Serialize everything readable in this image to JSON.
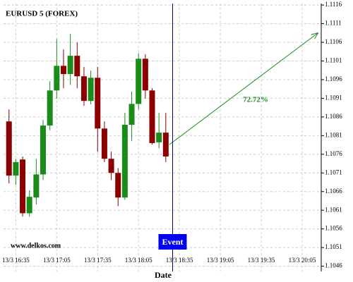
{
  "chart_data": {
    "type": "candlestick",
    "title": "EURUSD 5 (FOREX)",
    "watermark": "www.delkos.com",
    "x_label": "Date",
    "x": [
      "13/3 16:30",
      "13/3 16:35",
      "13/3 16:40",
      "13/3 16:45",
      "13/3 16:50",
      "13/3 16:55",
      "13/3 17:00",
      "13/3 17:05",
      "13/3 17:10",
      "13/3 17:15",
      "13/3 17:20",
      "13/3 17:25",
      "13/3 17:30",
      "13/3 17:35",
      "13/3 17:40",
      "13/3 17:45",
      "13/3 17:50",
      "13/3 17:55",
      "13/3 18:00",
      "13/3 18:05",
      "13/3 18:10",
      "13/3 18:15",
      "13/3 18:20",
      "13/3 18:25"
    ],
    "open": [
      1.10848,
      1.10703,
      1.10746,
      1.10602,
      1.10644,
      1.10706,
      1.10837,
      1.10931,
      1.10997,
      1.10975,
      1.11024,
      1.10969,
      1.10903,
      1.10965,
      1.10829,
      1.10748,
      1.1071,
      1.10644,
      1.10839,
      1.10895,
      1.11016,
      1.10931,
      1.10792,
      1.10818
    ],
    "high": [
      1.1088,
      1.10748,
      1.10754,
      1.10663,
      1.10748,
      1.10852,
      1.10956,
      1.11069,
      1.11041,
      1.11083,
      1.1106,
      1.10994,
      1.10984,
      1.10994,
      1.10848,
      1.10767,
      1.10723,
      1.10871,
      1.10928,
      1.11031,
      1.11028,
      1.10937,
      1.10871,
      1.10871
    ],
    "low": [
      1.10682,
      1.10678,
      1.10593,
      1.10593,
      1.10625,
      1.10691,
      1.10824,
      1.10909,
      1.10937,
      1.10946,
      1.10937,
      1.1089,
      1.10894,
      1.10767,
      1.10739,
      1.10691,
      1.10621,
      1.10638,
      1.10795,
      1.1088,
      1.10909,
      1.10786,
      1.10776,
      1.10739
    ],
    "close": [
      1.10703,
      1.10739,
      1.10602,
      1.10646,
      1.10706,
      1.10837,
      1.10931,
      1.10997,
      1.10975,
      1.11024,
      1.10969,
      1.10903,
      1.10965,
      1.10829,
      1.10748,
      1.1071,
      1.10644,
      1.10839,
      1.10895,
      1.11016,
      1.10931,
      1.1079,
      1.10818,
      1.10754
    ],
    "up_color": "#1a8c1a",
    "down_color": "#8b0000",
    "xlim": [
      "13/3 16:26",
      "13/3 20:19"
    ],
    "xticks": [
      "13/3 16:35",
      "13/3 17:05",
      "13/3 17:35",
      "13/3 18:05",
      "13/3 18:35",
      "13/3 19:05",
      "13/3 19:35",
      "13/3 20:05"
    ],
    "ylim": [
      1.10446,
      1.11164
    ],
    "yticks": [
      1.1116,
      1.1111,
      1.1106,
      1.1101,
      1.1096,
      1.1091,
      1.1086,
      1.1081,
      1.1076,
      1.1071,
      1.1066,
      1.1061,
      1.1056,
      1.1051,
      1.1046
    ],
    "grid": true,
    "event": {
      "label": "Event",
      "x": "13/3 18:30"
    },
    "annotation": "72.72%"
  }
}
